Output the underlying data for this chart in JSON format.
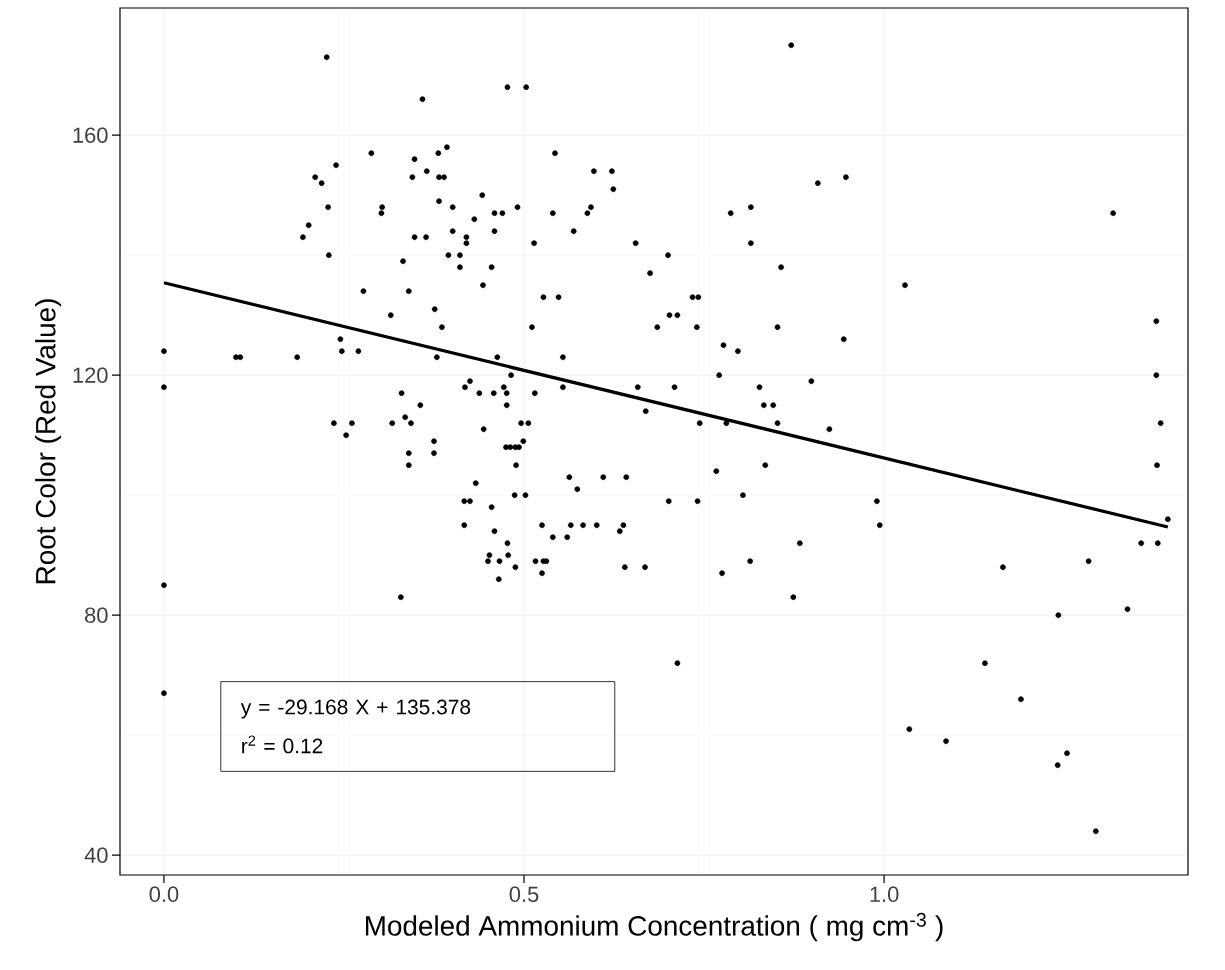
{
  "chart_data": {
    "type": "scatter",
    "xlabel": "Modeled Ammonium Concentration ( mg cm$^{-3}$ )",
    "ylabel": "Root Color (Red Value)",
    "annotations": [
      "y = -29.168 X + 135.378",
      "r$^{2}$ = 0.12"
    ],
    "xlim": [
      -0.061,
      1.422
    ],
    "ylim": [
      36.7,
      181.2
    ],
    "xticks": [
      {
        "value": 0,
        "label": "0.0"
      },
      {
        "value": 0.5,
        "label": "0.5"
      },
      {
        "value": 1,
        "label": "1.0"
      }
    ],
    "yticks": [
      40,
      80,
      120,
      160
    ],
    "grid": true,
    "marker": "circle",
    "series": [
      {
        "color": "#000000",
        "x": [
          0.0,
          0.0,
          0.0,
          0.0,
          0.226,
          0.477,
          0.503,
          0.359,
          0.288,
          0.239,
          0.21,
          0.219,
          0.348,
          0.381,
          0.393,
          0.365,
          0.345,
          0.382,
          0.389,
          0.382,
          0.401,
          0.442,
          0.459,
          0.47,
          0.491,
          0.431,
          0.228,
          0.303,
          0.302,
          0.201,
          0.193,
          0.348,
          0.364,
          0.401,
          0.42,
          0.42,
          0.459,
          0.514,
          0.229,
          0.332,
          0.395,
          0.411,
          0.411,
          0.455,
          0.443,
          0.277,
          0.34,
          0.315,
          0.376,
          0.386,
          0.511,
          0.1,
          0.106,
          0.185,
          0.245,
          0.247,
          0.27,
          0.379,
          0.463,
          0.482,
          0.425,
          0.418,
          0.438,
          0.458,
          0.472,
          0.476,
          0.476,
          0.515,
          0.33,
          0.356,
          0.236,
          0.261,
          0.317,
          0.335,
          0.343,
          0.444,
          0.496,
          0.506,
          0.253,
          0.34,
          0.34,
          0.375,
          0.375,
          0.475,
          0.481,
          0.488,
          0.493,
          0.499,
          0.489,
          0.433,
          0.417,
          0.425,
          0.455,
          0.487,
          0.502,
          0.417,
          0.459,
          0.477,
          0.452,
          0.45,
          0.466,
          0.478,
          0.488,
          0.465,
          0.516,
          0.329,
          0.871,
          0.543,
          0.597,
          0.622,
          0.624,
          0.54,
          0.588,
          0.593,
          0.569,
          0.655,
          0.7,
          0.675,
          0.527,
          0.548,
          0.734,
          0.742,
          0.702,
          0.713,
          0.685,
          0.74,
          0.554,
          0.777,
          0.797,
          0.771,
          0.852,
          0.815,
          0.787,
          0.815,
          0.908,
          0.947,
          0.857,
          0.944,
          0.899,
          0.827,
          0.833,
          0.846,
          0.852,
          0.781,
          0.744,
          0.924,
          0.709,
          0.658,
          0.669,
          0.554,
          1.029,
          1.318,
          1.378,
          1.378,
          1.384,
          0.563,
          0.574,
          0.61,
          0.642,
          0.767,
          0.835,
          0.701,
          0.741,
          0.804,
          0.525,
          0.565,
          0.582,
          0.601,
          0.638,
          0.633,
          0.54,
          0.56,
          0.527,
          0.531,
          0.525,
          0.64,
          0.668,
          0.775,
          0.814,
          0.883,
          0.874,
          0.713,
          0.99,
          0.994,
          1.165,
          1.14,
          1.19,
          1.035,
          1.086,
          1.242,
          1.241,
          1.254,
          1.294,
          1.284,
          1.338,
          1.357,
          1.38,
          1.379,
          1.394
        ],
        "values": [
          124,
          118,
          85,
          67,
          173,
          168,
          168,
          166,
          157,
          155,
          153,
          152,
          156,
          157,
          158,
          154,
          153,
          153,
          153,
          149,
          148,
          150,
          147,
          147,
          148,
          146,
          148,
          148,
          147,
          145,
          143,
          143,
          143,
          144,
          143,
          142,
          144,
          142,
          140,
          139,
          140,
          140,
          138,
          138,
          135,
          134,
          134,
          130,
          131,
          128,
          128,
          123,
          123,
          123,
          126,
          124,
          124,
          123,
          123,
          120,
          119,
          118,
          117,
          117,
          118,
          117,
          115,
          117,
          117,
          115,
          112,
          112,
          112,
          113,
          112,
          111,
          112,
          112,
          110,
          107,
          105,
          109,
          107,
          108,
          108,
          108,
          108,
          109,
          105,
          102,
          99,
          99,
          98,
          100,
          100,
          95,
          94,
          92,
          90,
          89,
          89,
          90,
          88,
          86,
          89,
          83,
          175,
          157,
          154,
          154,
          151,
          147,
          147,
          148,
          144,
          142,
          140,
          137,
          133,
          133,
          133,
          133,
          130,
          130,
          128,
          128,
          123,
          125,
          124,
          120,
          128,
          148,
          147,
          142,
          152,
          153,
          138,
          126,
          119,
          118,
          115,
          115,
          112,
          112,
          112,
          111,
          118,
          118,
          114,
          118,
          135,
          147,
          129,
          120,
          112,
          103,
          101,
          103,
          103,
          104,
          105,
          99,
          99,
          100,
          95,
          95,
          95,
          95,
          95,
          94,
          93,
          93,
          89,
          89,
          87,
          88,
          88,
          87,
          89,
          92,
          83,
          72,
          99,
          95,
          88,
          72,
          66,
          61,
          59,
          80,
          55,
          57,
          44,
          89,
          81,
          92,
          92,
          105,
          96
        ]
      },
      {
        "type": "line",
        "color": "#000000",
        "marker": "none",
        "line_style": "solid",
        "x": [
          0,
          1.394
        ],
        "values": [
          135.4,
          94.7
        ]
      }
    ]
  }
}
